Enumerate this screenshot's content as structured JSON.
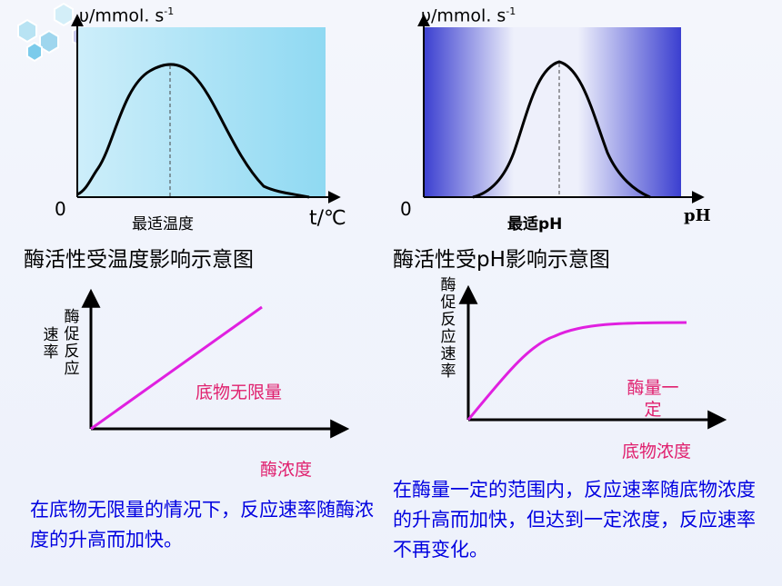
{
  "chart1": {
    "ylabel": "υ/mmol. s",
    "ylabel_sup": "-1",
    "origin": "0",
    "xtick": "最适温度",
    "xlabel": "t/℃",
    "caption": "酶活性受温度影响示意图"
  },
  "chart2": {
    "ylabel": "υ/mmol. s",
    "ylabel_sup": "-1",
    "origin": "0",
    "xtick": "最适pH",
    "xlabel": "pH",
    "caption": "酶活性受pH影响示意图"
  },
  "chart3": {
    "ylabel_col1": "酶促反应",
    "ylabel_col2": "速率",
    "annotation": "底物无限量",
    "xlabel": "酶浓度",
    "description": "在底物无限量的情况下，反应速率随酶浓度的升高而加快。"
  },
  "chart4": {
    "ylabel": "酶促反应速率",
    "annotation": "酶量一定",
    "xlabel": "底物浓度",
    "description": "在酶量一定的范围内，反应速率随底物浓度的升高而加快，但达到一定浓度，反应速率不再变化。"
  },
  "colors": {
    "accent": "#e020e0",
    "text_blue": "#0000e0",
    "label_magenta": "#e0206e"
  }
}
